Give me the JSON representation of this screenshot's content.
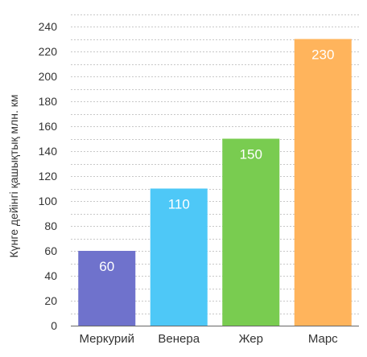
{
  "chart_data": {
    "type": "bar",
    "title": "",
    "xlabel": "",
    "ylabel": "Күнге дейінгі қашықтық млн. км",
    "ylim": [
      0,
      240
    ],
    "y_ticks": [
      0,
      20,
      40,
      60,
      80,
      100,
      120,
      140,
      160,
      180,
      200,
      220,
      240
    ],
    "grid": true,
    "categories": [
      "Меркурий",
      "Венера",
      "Жер",
      "Марс"
    ],
    "values": [
      60,
      110,
      150,
      230
    ],
    "data_labels": [
      "60",
      "110",
      "150",
      "230"
    ],
    "colors": [
      "#6f72cc",
      "#4ec8f7",
      "#79cc50",
      "#ffb45c"
    ]
  }
}
